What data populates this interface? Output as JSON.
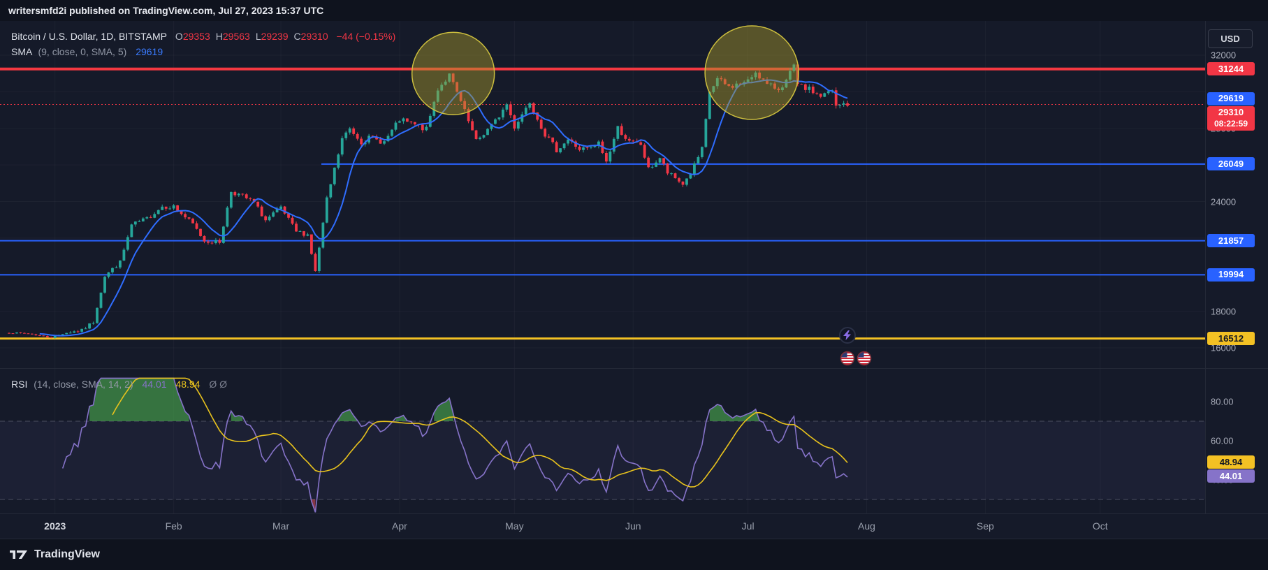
{
  "topbar": {
    "text": "writersmfd2i published on TradingView.com, Jul 27, 2023 15:37 UTC"
  },
  "currency_button": {
    "label": "USD"
  },
  "legend": {
    "symbol": "Bitcoin / U.S. Dollar, 1D, BITSTAMP",
    "ohlc": [
      {
        "label": "O",
        "value": "29353"
      },
      {
        "label": "H",
        "value": "29563"
      },
      {
        "label": "L",
        "value": "29239"
      },
      {
        "label": "C",
        "value": "29310"
      }
    ],
    "change": "−44 (−0.15%)",
    "sma_name": "SMA",
    "sma_params": "(9, close, 0, SMA, 5)",
    "sma_value": "29619"
  },
  "rsi_legend": {
    "name": "RSI",
    "params": "(14, close, SMA, 14, 2)",
    "value": "44.01",
    "ma_value": "48.94",
    "zeros": "Ø  Ø"
  },
  "price_axis": {
    "ticks": [
      "32000",
      "28000",
      "24000",
      "18000",
      "16000"
    ],
    "badges": [
      {
        "value": "31244",
        "color": "#f23645"
      },
      {
        "value": "29619",
        "color": "#2962ff"
      },
      {
        "value": "29310",
        "color": "#f23645",
        "sub": "08:22:59"
      },
      {
        "value": "26049",
        "color": "#2962ff"
      },
      {
        "value": "21857",
        "color": "#2962ff"
      },
      {
        "value": "19994",
        "color": "#2962ff"
      },
      {
        "value": "16512",
        "color": "#f3c124",
        "dark": true
      }
    ]
  },
  "rsi_axis": {
    "ticks": [
      "80.00",
      "60.00",
      "40.00"
    ],
    "badges": [
      {
        "value": "48.94",
        "color": "#f3c124",
        "dark": true
      },
      {
        "value": "44.01",
        "color": "#8673c9"
      }
    ]
  },
  "events": {
    "icons": [
      "lightning-icon",
      "us-flag-icon",
      "us-flag-icon"
    ]
  },
  "footer": {
    "brand": "TradingView"
  },
  "chart_data": {
    "type": "candlestick",
    "title": "Bitcoin / U.S. Dollar, 1D, BITSTAMP",
    "interval": "1D",
    "candle_colors": {
      "up": "#26a69a",
      "down": "#f23645"
    },
    "x_axis": {
      "start_date": "2022-12-20",
      "last_data_date": "2023-07-27",
      "month_labels": [
        {
          "label": "2023",
          "day": 12,
          "major": true
        },
        {
          "label": "Feb",
          "day": 43
        },
        {
          "label": "Mar",
          "day": 71
        },
        {
          "label": "Apr",
          "day": 102
        },
        {
          "label": "May",
          "day": 132
        },
        {
          "label": "Jun",
          "day": 163
        },
        {
          "label": "Jul",
          "day": 193
        },
        {
          "label": "Aug",
          "day": 224
        },
        {
          "label": "Sep",
          "day": 255
        },
        {
          "label": "Oct",
          "day": 285
        }
      ]
    },
    "y_axis": {
      "visible_range": [
        15800,
        32700
      ],
      "grid_ticks": [
        32000,
        30000,
        28000,
        26000,
        24000,
        22000,
        20000,
        18000,
        16000
      ]
    },
    "approx_daily_closes": [
      [
        0,
        16830
      ],
      [
        5,
        16780
      ],
      [
        11,
        16560
      ],
      [
        15,
        16840
      ],
      [
        19,
        16950
      ],
      [
        22,
        17420
      ],
      [
        25,
        19930
      ],
      [
        29,
        20680
      ],
      [
        32,
        22700
      ],
      [
        36,
        23060
      ],
      [
        40,
        23740
      ],
      [
        43,
        23720
      ],
      [
        48,
        22760
      ],
      [
        51,
        21850
      ],
      [
        55,
        21780
      ],
      [
        58,
        24560
      ],
      [
        61,
        24280
      ],
      [
        64,
        23940
      ],
      [
        67,
        22970
      ],
      [
        71,
        23640
      ],
      [
        75,
        22350
      ],
      [
        78,
        22200
      ],
      [
        80,
        20150
      ],
      [
        83,
        24100
      ],
      [
        87,
        27420
      ],
      [
        89,
        27980
      ],
      [
        92,
        27280
      ],
      [
        94,
        27460
      ],
      [
        98,
        27260
      ],
      [
        102,
        28460
      ],
      [
        106,
        28180
      ],
      [
        109,
        27930
      ],
      [
        112,
        30180
      ],
      [
        115,
        30890
      ],
      [
        118,
        29440
      ],
      [
        122,
        27280
      ],
      [
        127,
        28380
      ],
      [
        130,
        29320
      ],
      [
        132,
        28090
      ],
      [
        136,
        29480
      ],
      [
        140,
        27670
      ],
      [
        143,
        26820
      ],
      [
        146,
        27390
      ],
      [
        149,
        26860
      ],
      [
        152,
        26890
      ],
      [
        154,
        27190
      ],
      [
        156,
        26170
      ],
      [
        159,
        28040
      ],
      [
        162,
        27230
      ],
      [
        165,
        27120
      ],
      [
        167,
        25760
      ],
      [
        170,
        26380
      ],
      [
        172,
        25560
      ],
      [
        176,
        24960
      ],
      [
        178,
        25540
      ],
      [
        181,
        26840
      ],
      [
        183,
        29980
      ],
      [
        185,
        30680
      ],
      [
        188,
        30270
      ],
      [
        191,
        30440
      ],
      [
        193,
        30560
      ],
      [
        195,
        31120
      ],
      [
        198,
        30360
      ],
      [
        201,
        30170
      ],
      [
        203,
        30590
      ],
      [
        205,
        31390
      ],
      [
        206,
        30320
      ],
      [
        209,
        30120
      ],
      [
        212,
        29760
      ],
      [
        215,
        30040
      ],
      [
        216,
        29170
      ],
      [
        218,
        29340
      ],
      [
        219,
        29310
      ]
    ],
    "levels": [
      {
        "price": 31244,
        "color": "#f43841",
        "width": 4,
        "from": 0
      },
      {
        "price": 29310,
        "color": "#f23645",
        "width": 1,
        "dash": "2 3",
        "from": 0
      },
      {
        "price": 26049,
        "color": "#2962ff",
        "width": 2,
        "from": 460
      },
      {
        "price": 21857,
        "color": "#2962ff",
        "width": 2,
        "from": 0
      },
      {
        "price": 19994,
        "color": "#2962ff",
        "width": 2,
        "from": 0
      },
      {
        "price": 16512,
        "color": "#f3c124",
        "width": 3,
        "from": 0
      }
    ],
    "indicators": {
      "sma9_color": "#2f6dff",
      "sma9_last": 29619,
      "rsi": {
        "length": 14,
        "last": 44.01,
        "ma_last": 48.94,
        "bands": [
          70,
          30
        ],
        "color": "#8673c9",
        "ma_color": "#e9c31d",
        "overbought_fill": "rgba(76,175,80,0.6)",
        "oversold_fill": "rgba(247,82,95,0.5)"
      }
    },
    "annotations": {
      "circles": [
        {
          "day": 116,
          "price": 31000,
          "radius_px": 59
        },
        {
          "day": 194,
          "price": 31045,
          "radius_px": 67
        }
      ]
    }
  }
}
